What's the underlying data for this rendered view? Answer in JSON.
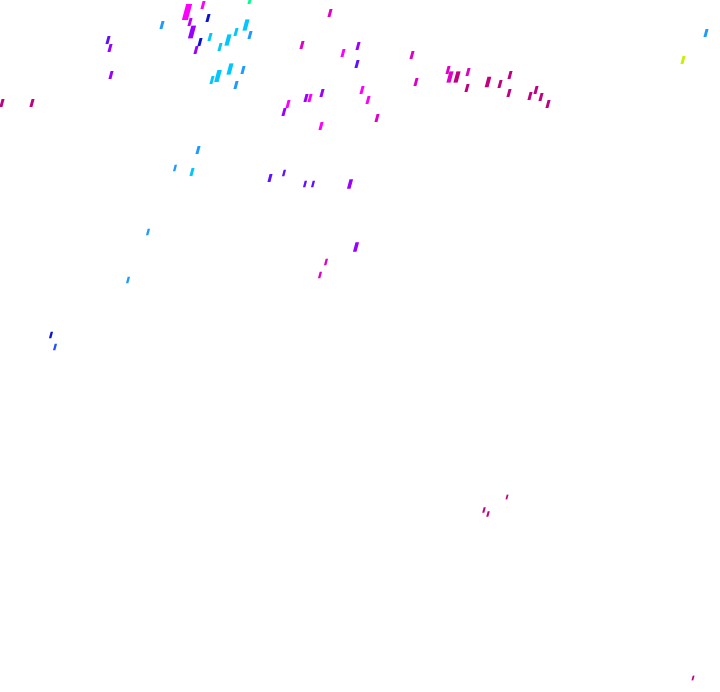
{
  "background": "#ffffff",
  "colors": {
    "cyan": "#00c8ff",
    "sky": "#1e9bff",
    "navy": "#0a14d0",
    "blue": "#2a50ff",
    "indigo": "#6010ff",
    "violet": "#9a00ff",
    "purple": "#c000f0",
    "magenta": "#ff00ff",
    "fuchsia": "#e000c8",
    "crimson": "#c00080",
    "lime": "#c8f000",
    "mint": "#00ff90"
  }
}
